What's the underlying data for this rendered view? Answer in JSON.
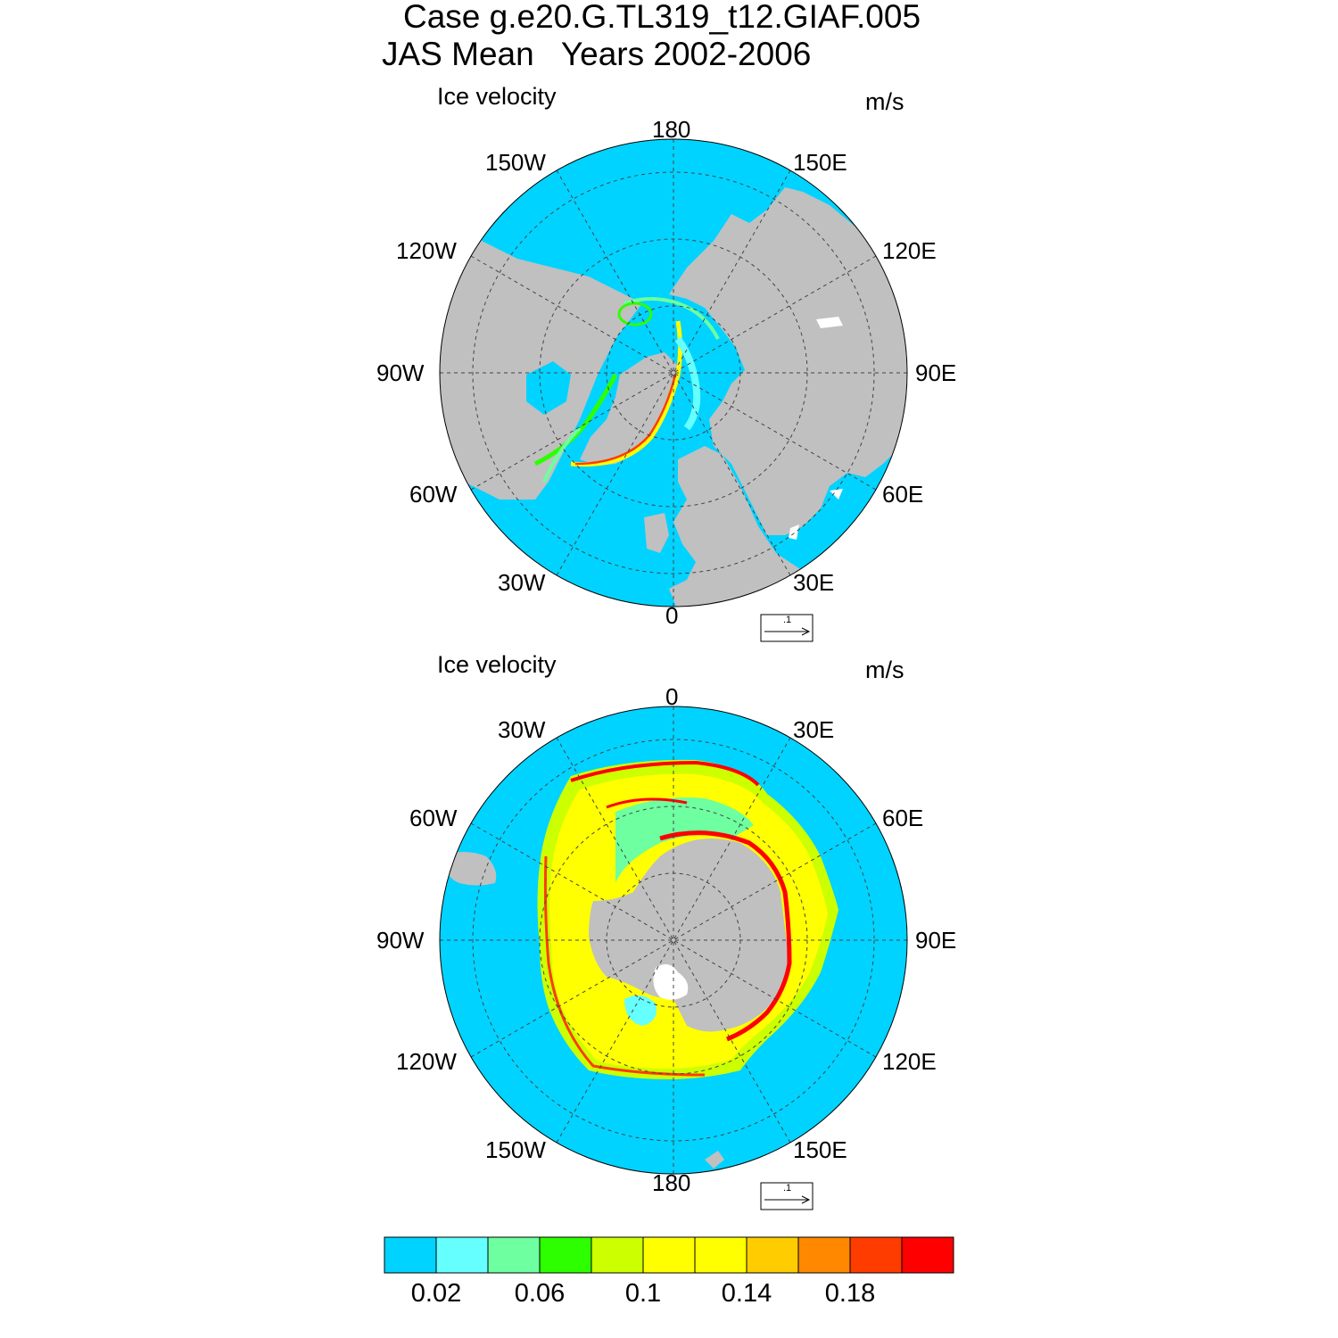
{
  "figure": {
    "title_line1": "Case g.e20.G.TL319_t12.GIAF.005",
    "title_line2": "JAS Mean   Years 2002-2006"
  },
  "panels": [
    {
      "hemisphere": "north",
      "left_label": "Ice velocity",
      "right_label": "m/s",
      "lon_labels": {
        "top": "180",
        "top_right": "150E",
        "right_upper": "120E",
        "right": "90E",
        "right_lower": "60E",
        "bottom_right": "30E",
        "bottom": "0",
        "bottom_left": "30W",
        "left_lower": "60W",
        "left": "90W",
        "left_upper": "120W",
        "top_left": "150W"
      },
      "reference_vector": ".1"
    },
    {
      "hemisphere": "south",
      "left_label": "Ice velocity",
      "right_label": "m/s",
      "lon_labels": {
        "top": "0",
        "top_right": "30E",
        "right_upper": "60E",
        "right": "90E",
        "right_lower": "120E",
        "bottom_right": "150E",
        "bottom": "180",
        "bottom_left": "150W",
        "left_lower": "120W",
        "left": "90W",
        "left_upper": "60W",
        "top_left": "30W"
      },
      "reference_vector": ".1"
    }
  ],
  "colorbar": {
    "colors": [
      "#00d3ff",
      "#66ffff",
      "#6dffa0",
      "#2dff00",
      "#ccff00",
      "#ffff00",
      "#ffff00",
      "#ffcc00",
      "#ff8800",
      "#ff3c00",
      "#ff0000"
    ],
    "tick_labels": [
      "0.02",
      "0.06",
      "0.1",
      "0.14",
      "0.18"
    ],
    "tick_values": [
      0.02,
      0.06,
      0.1,
      0.14,
      0.18
    ]
  },
  "colors": {
    "ocean": "#00d3ff",
    "land": "#c0c0c0",
    "ice_high": "#ff0000"
  }
}
